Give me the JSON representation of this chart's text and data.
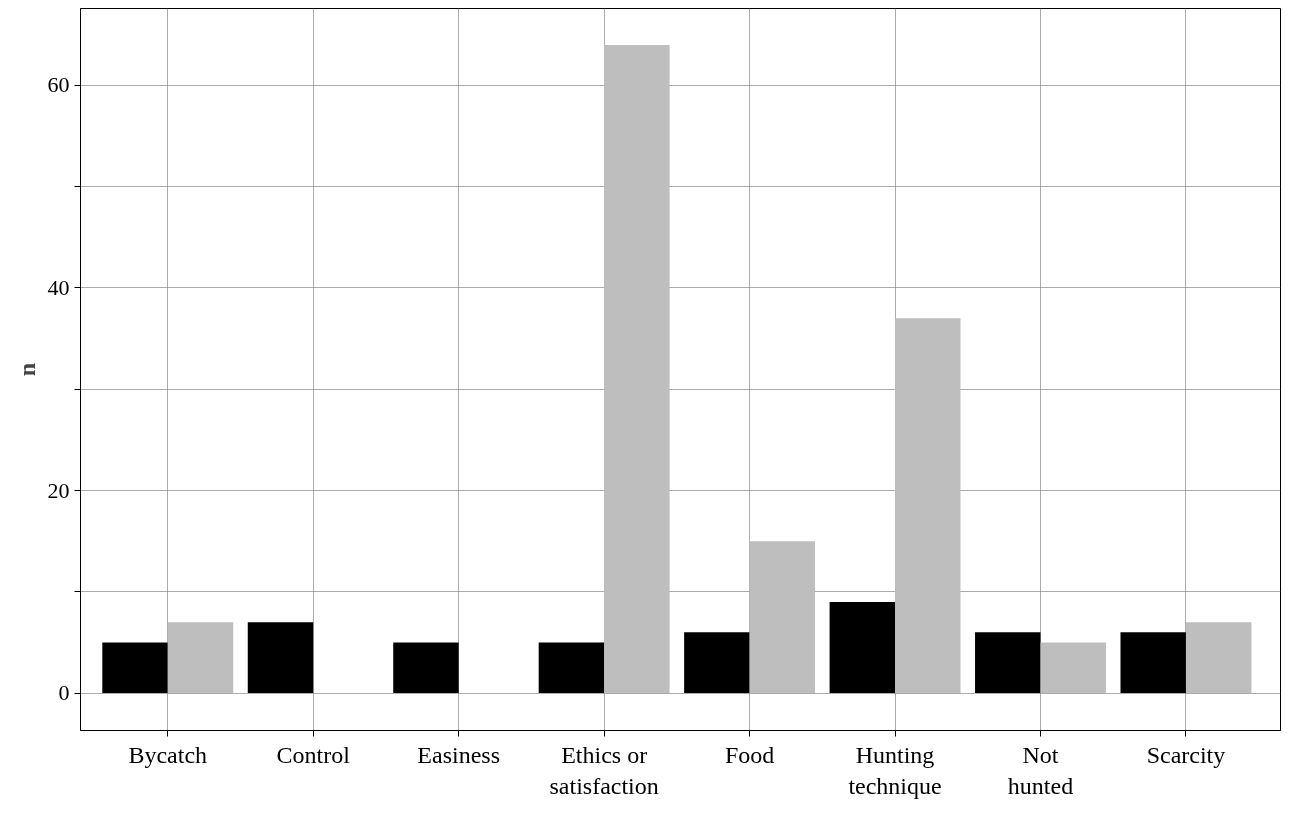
{
  "chart_data": {
    "type": "bar",
    "ylabel": "n",
    "categories": [
      "Bycatch",
      "Control",
      "Easiness",
      "Ethics or\nsatisfaction",
      "Food",
      "Hunting\ntechnique",
      "Not\nhunted",
      "Scarcity"
    ],
    "series": [
      {
        "color": "#000000",
        "values": [
          5,
          7,
          5,
          5,
          6,
          9,
          6,
          6
        ]
      },
      {
        "color": "#bebebe",
        "values": [
          7,
          0,
          0,
          64,
          15,
          37,
          5,
          7
        ]
      }
    ],
    "ylim": [
      -3.7,
      67.6
    ],
    "yticks": [
      0,
      {
        "value": 10,
        "label": null
      },
      20,
      {
        "value": 30,
        "label": null
      },
      40,
      {
        "value": 50,
        "label": null
      },
      60
    ],
    "grid": true
  }
}
